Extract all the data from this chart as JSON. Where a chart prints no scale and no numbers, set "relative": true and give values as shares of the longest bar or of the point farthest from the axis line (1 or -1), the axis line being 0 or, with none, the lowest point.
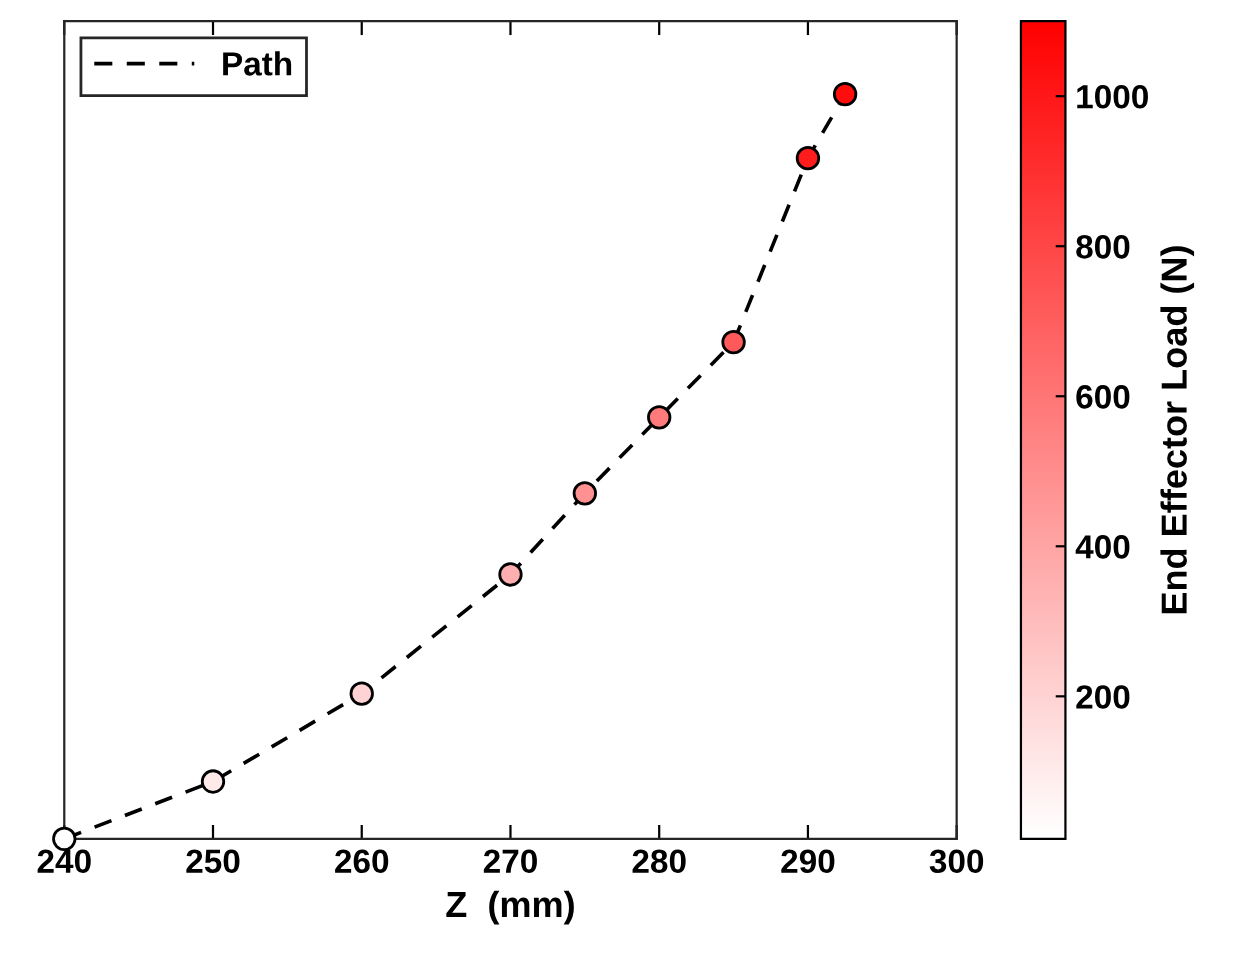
{
  "chart_data": {
    "type": "scatter",
    "xlabel": "Z  (mm)",
    "clabel": "End Effector Load (N)",
    "relative": true,
    "x": [
      240,
      250,
      260,
      270,
      275,
      280,
      285,
      290,
      292.5
    ],
    "series": [
      {
        "name": "Path",
        "type": "line",
        "color": "#000000",
        "line_style": "dashed",
        "values": [
          0,
          0.077,
          0.195,
          0.355,
          0.464,
          0.566,
          0.667,
          0.914,
          1.0
        ]
      },
      {
        "marker": "circle",
        "values": [
          0,
          0.077,
          0.195,
          0.355,
          0.464,
          0.566,
          0.667,
          0.914,
          1.0
        ],
        "colors": [
          "#ffffff",
          "#ffeaea",
          "#ffd3d3",
          "#ffafaf",
          "#ff9191",
          "#ff7a7a",
          "#ff5959",
          "#ff1c1c",
          "#ff0c0c"
        ]
      }
    ],
    "xlim": [
      240,
      300
    ],
    "xticks": [
      240,
      250,
      260,
      270,
      280,
      290,
      300
    ],
    "clim": [
      10,
      1100
    ],
    "cticks": [
      200,
      400,
      600,
      800,
      1000
    ],
    "tick_labels": "x",
    "grid": false,
    "legend": "top left"
  }
}
